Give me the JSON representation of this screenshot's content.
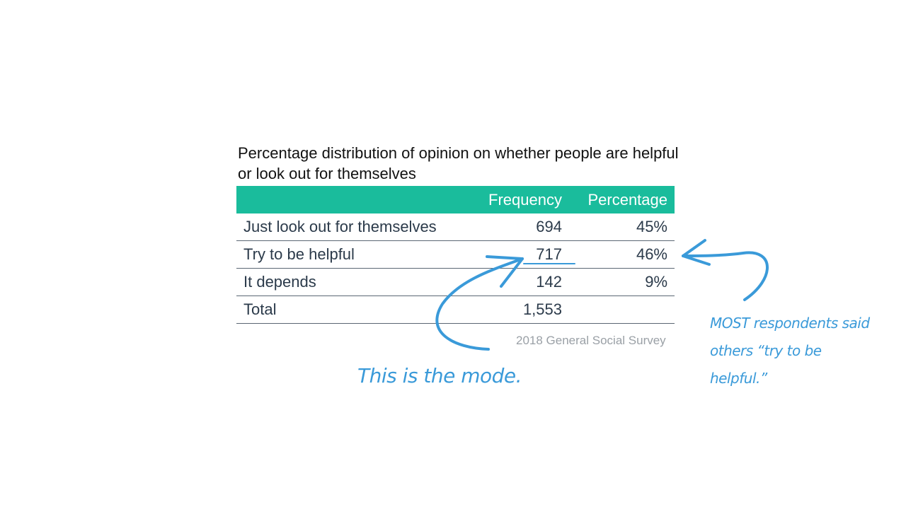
{
  "chart_data": {
    "type": "table",
    "title": "Percentage distribution of opinion on whether people are helpful or look out for themselves",
    "columns": [
      "",
      "Frequency",
      "Percentage"
    ],
    "rows": [
      {
        "label": "Just look out for themselves",
        "frequency": "694",
        "percentage": "45%"
      },
      {
        "label": "Try to be helpful",
        "frequency": "717",
        "percentage": "46%"
      },
      {
        "label": "It depends",
        "frequency": "142",
        "percentage": "9%"
      },
      {
        "label": "Total",
        "frequency": "1,553",
        "percentage": ""
      }
    ],
    "source": "2018 General Social Survey",
    "header_color": "#1abc9c",
    "annotations": [
      {
        "text": "This is the mode.",
        "target": "Try to be helpful frequency"
      },
      {
        "text": "MOST respondents said others “try to be helpful.”",
        "target": "Try to be helpful percentage"
      }
    ],
    "annotation_color": "#3a9ad9"
  }
}
